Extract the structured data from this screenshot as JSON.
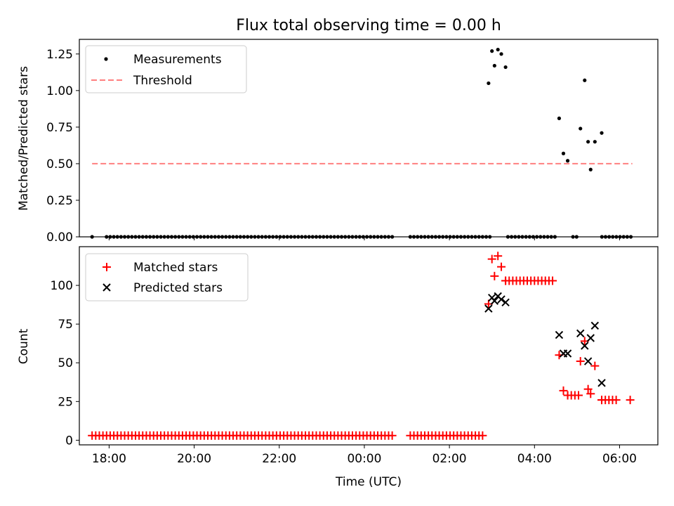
{
  "figure_title": "Flux total observing time = 0.00 h",
  "chart_data": [
    {
      "id": "ratio",
      "type": "scatter",
      "title": "Flux total observing time = 0.00 h",
      "xlabel": "",
      "ylabel": "Matched/Predicted stars",
      "xlim": [
        -6.7,
        6.9
      ],
      "ylim": [
        0,
        1.35
      ],
      "yticks": [
        0.0,
        0.25,
        0.5,
        0.75,
        1.0,
        1.25
      ],
      "ytick_labels": [
        "0.00",
        "0.25",
        "0.50",
        "0.75",
        "1.00",
        "1.25"
      ],
      "legend": "top-left",
      "series": [
        {
          "name": "Measurements",
          "kind": "dots",
          "color": "#000000",
          "points": [
            [
              2.92,
              1.05
            ],
            [
              3.0,
              1.27
            ],
            [
              3.06,
              1.17
            ],
            [
              3.14,
              1.28
            ],
            [
              3.22,
              1.25
            ],
            [
              3.32,
              1.16
            ],
            [
              4.58,
              0.81
            ],
            [
              4.68,
              0.57
            ],
            [
              4.78,
              0.52
            ],
            [
              5.08,
              0.74
            ],
            [
              5.18,
              1.07
            ],
            [
              5.26,
              0.65
            ],
            [
              5.32,
              0.46
            ],
            [
              5.42,
              0.65
            ],
            [
              5.58,
              0.71
            ]
          ],
          "zero_run": {
            "y": 0,
            "x_start": -6.4,
            "x_end": 6.3,
            "gaps": [
              [
                -6.4,
                -6.1
              ],
              [
                0.7,
                1.05
              ],
              [
                2.95,
                3.35
              ],
              [
                4.5,
                4.85
              ],
              [
                5.0,
                5.55
              ]
            ]
          }
        },
        {
          "name": "Threshold",
          "kind": "dashed-line",
          "color": "#ff7f7f",
          "x": [
            -6.4,
            6.3
          ],
          "y": [
            0.5,
            0.5
          ]
        }
      ]
    },
    {
      "id": "counts",
      "type": "scatter",
      "title": "",
      "xlabel": "Time (UTC)",
      "ylabel": "Count",
      "xlim": [
        -6.7,
        6.9
      ],
      "ylim": [
        -3,
        125
      ],
      "yticks": [
        0,
        25,
        50,
        75,
        100
      ],
      "ytick_labels": [
        "0",
        "25",
        "50",
        "75",
        "100"
      ],
      "xticks": [
        -6,
        -4,
        -2,
        0,
        2,
        4,
        6
      ],
      "xtick_labels": [
        "18:00",
        "20:00",
        "22:00",
        "00:00",
        "02:00",
        "04:00",
        "06:00"
      ],
      "legend": "top-left",
      "series": [
        {
          "name": "Matched stars",
          "kind": "plus",
          "color": "#ff0000",
          "points": [
            [
              2.92,
              88
            ],
            [
              3.0,
              117
            ],
            [
              3.06,
              106
            ],
            [
              3.14,
              119
            ],
            [
              3.22,
              112
            ],
            [
              3.32,
              103
            ],
            [
              4.58,
              55
            ],
            [
              4.68,
              32
            ],
            [
              4.78,
              29
            ],
            [
              5.08,
              51
            ],
            [
              5.18,
              64
            ],
            [
              5.26,
              33
            ],
            [
              5.32,
              30
            ],
            [
              5.42,
              48
            ],
            [
              5.58,
              26
            ],
            [
              6.25,
              26
            ]
          ],
          "runs": [
            {
              "y": 3,
              "x_start": -6.4,
              "x_end": 2.85,
              "gaps": [
                [
                  0.7,
                  1.05
                ]
              ]
            },
            {
              "y": 103,
              "x_start": 3.32,
              "x_end": 4.5,
              "gaps": []
            },
            {
              "y": 29,
              "x_start": 4.78,
              "x_end": 5.05,
              "gaps": []
            },
            {
              "y": 26,
              "x_start": 5.58,
              "x_end": 6.0,
              "gaps": []
            }
          ]
        },
        {
          "name": "Predicted stars",
          "kind": "x",
          "color": "#000000",
          "points": [
            [
              2.92,
              85
            ],
            [
              3.0,
              92
            ],
            [
              3.06,
              90
            ],
            [
              3.14,
              93
            ],
            [
              3.22,
              91
            ],
            [
              3.32,
              89
            ],
            [
              4.58,
              68
            ],
            [
              4.68,
              56
            ],
            [
              4.78,
              56
            ],
            [
              5.08,
              69
            ],
            [
              5.18,
              61
            ],
            [
              5.26,
              51
            ],
            [
              5.32,
              66
            ],
            [
              5.42,
              74
            ],
            [
              5.58,
              37
            ]
          ]
        }
      ]
    }
  ]
}
